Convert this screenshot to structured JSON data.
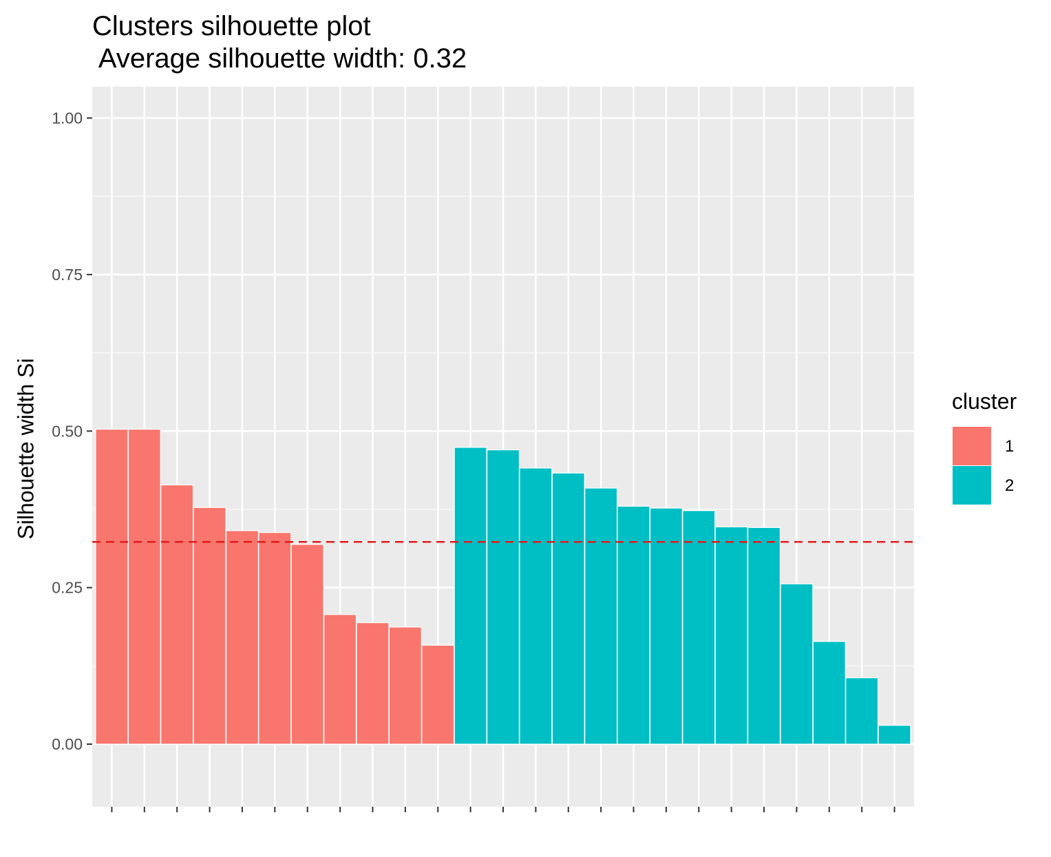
{
  "chart_data": {
    "type": "bar",
    "title": "Clusters silhouette plot",
    "subtitle": " Average silhouette width: 0.32",
    "xlabel": "",
    "ylabel": "Silhouette width Si",
    "ylim": [
      -0.1,
      1.05
    ],
    "yticks": [
      "0.00",
      "0.25",
      "0.50",
      "0.75",
      "1.00"
    ],
    "grid": true,
    "legend_position": "right",
    "legend_title": "cluster",
    "average_line": {
      "value": 0.323,
      "color": "#e31a1c",
      "style": "dashed"
    },
    "series": [
      {
        "name": "1",
        "color": "#F8766D",
        "values": [
          0.503,
          0.503,
          0.414,
          0.378,
          0.341,
          0.338,
          0.319,
          0.207,
          0.194,
          0.187,
          0.158
        ]
      },
      {
        "name": "2",
        "color": "#00BFC4",
        "values": [
          0.474,
          0.47,
          0.441,
          0.433,
          0.409,
          0.38,
          0.377,
          0.373,
          0.347,
          0.346,
          0.256,
          0.164,
          0.106,
          0.03
        ]
      }
    ]
  }
}
